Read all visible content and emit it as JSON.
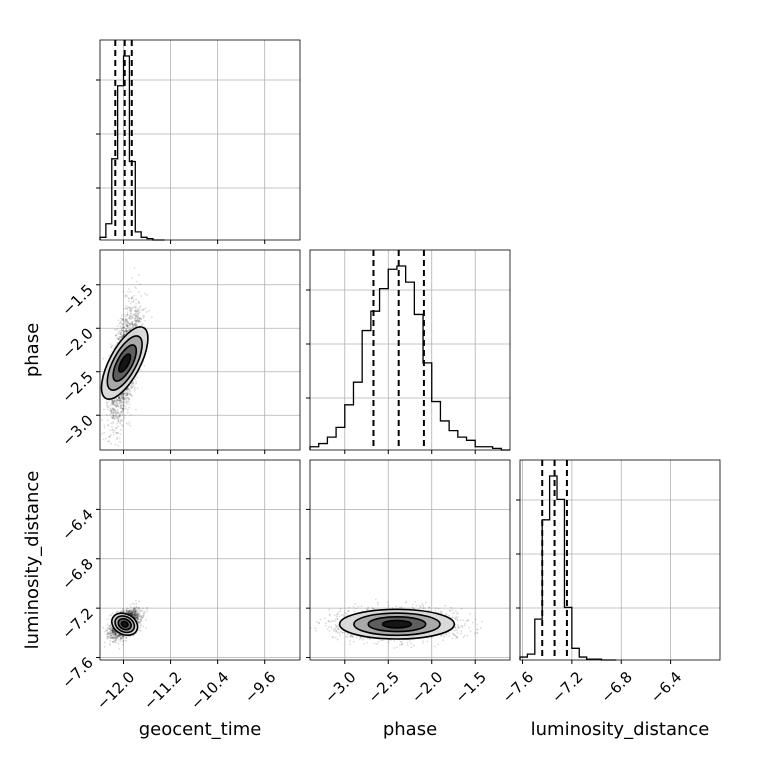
{
  "chart_data": {
    "type": "corner",
    "parameters": [
      "geocent_time",
      "phase",
      "luminosity_distance"
    ],
    "axes": {
      "geocent_time": {
        "range": [
          -12.4,
          -9.0
        ],
        "ticks": [
          -12.0,
          -11.2,
          -10.4,
          -9.6
        ],
        "tick_labels": [
          "−12.0",
          "−11.2",
          "−10.4",
          "−9.6"
        ],
        "label": "geocent_time"
      },
      "phase": {
        "range": [
          -3.4,
          -1.1
        ],
        "ticks": [
          -3.0,
          -2.5,
          -2.0,
          -1.5
        ],
        "tick_labels": [
          "−3.0",
          "−2.5",
          "−2.0",
          "−1.5"
        ],
        "label": "phase"
      },
      "luminosity_distance": {
        "range": [
          -7.62,
          -6.0
        ],
        "ticks": [
          -7.6,
          -7.2,
          -6.8,
          -6.4
        ],
        "tick_labels": [
          "−7.6",
          "−7.2",
          "−6.8",
          "−6.4"
        ],
        "label": "luminosity_distance"
      }
    },
    "histograms": {
      "geocent_time": {
        "bin_edges": [
          -12.4,
          -12.3,
          -12.2,
          -12.1,
          -12.0,
          -11.9,
          -11.8,
          -11.7,
          -11.6,
          -11.5,
          -11.4,
          -11.3
        ],
        "counts": [
          1,
          6,
          30,
          57,
          68,
          29,
          3,
          1,
          0.5,
          0,
          0
        ],
        "quantiles": [
          -12.14,
          -11.98,
          -11.86
        ]
      },
      "phase": {
        "bin_edges": [
          -3.4,
          -3.3,
          -3.2,
          -3.1,
          -3.0,
          -2.9,
          -2.8,
          -2.7,
          -2.6,
          -2.5,
          -2.4,
          -2.3,
          -2.2,
          -2.1,
          -2.0,
          -1.9,
          -1.8,
          -1.7,
          -1.6,
          -1.5,
          -1.4,
          -1.3,
          -1.2,
          -1.1
        ],
        "counts": [
          1,
          2,
          4,
          7,
          14,
          21,
          37,
          43,
          50,
          56,
          57,
          52,
          42,
          27,
          15,
          9,
          6,
          4,
          3,
          1,
          1,
          0.5,
          0
        ],
        "quantiles": [
          -2.67,
          -2.38,
          -2.09
        ]
      },
      "luminosity_distance": {
        "bin_edges": [
          -7.62,
          -7.56,
          -7.5,
          -7.44,
          -7.38,
          -7.32,
          -7.26,
          -7.2,
          -7.14,
          -7.08,
          -7.02,
          -6.96,
          -6.9,
          -6.84
        ],
        "counts": [
          1,
          2,
          14,
          48,
          63,
          55,
          18,
          4,
          1,
          0.3,
          0.3,
          0,
          0
        ],
        "quantiles": [
          -7.44,
          -7.34,
          -7.24
        ]
      }
    },
    "pairs": [
      {
        "x": "geocent_time",
        "y": "phase",
        "center": [
          -11.98,
          -2.4
        ],
        "spread": [
          0.13,
          0.32
        ],
        "correlation": 0.6
      },
      {
        "x": "geocent_time",
        "y": "luminosity_distance",
        "center": [
          -11.98,
          -7.33
        ],
        "spread": [
          0.12,
          0.055
        ],
        "correlation": 0.5
      },
      {
        "x": "phase",
        "y": "luminosity_distance",
        "center": [
          -2.4,
          -7.33
        ],
        "spread": [
          0.33,
          0.06
        ],
        "correlation": 0.0
      }
    ],
    "grid": true,
    "colors": {
      "line": "#000000",
      "grid": "#b0b0b0",
      "points": "#000000"
    }
  }
}
